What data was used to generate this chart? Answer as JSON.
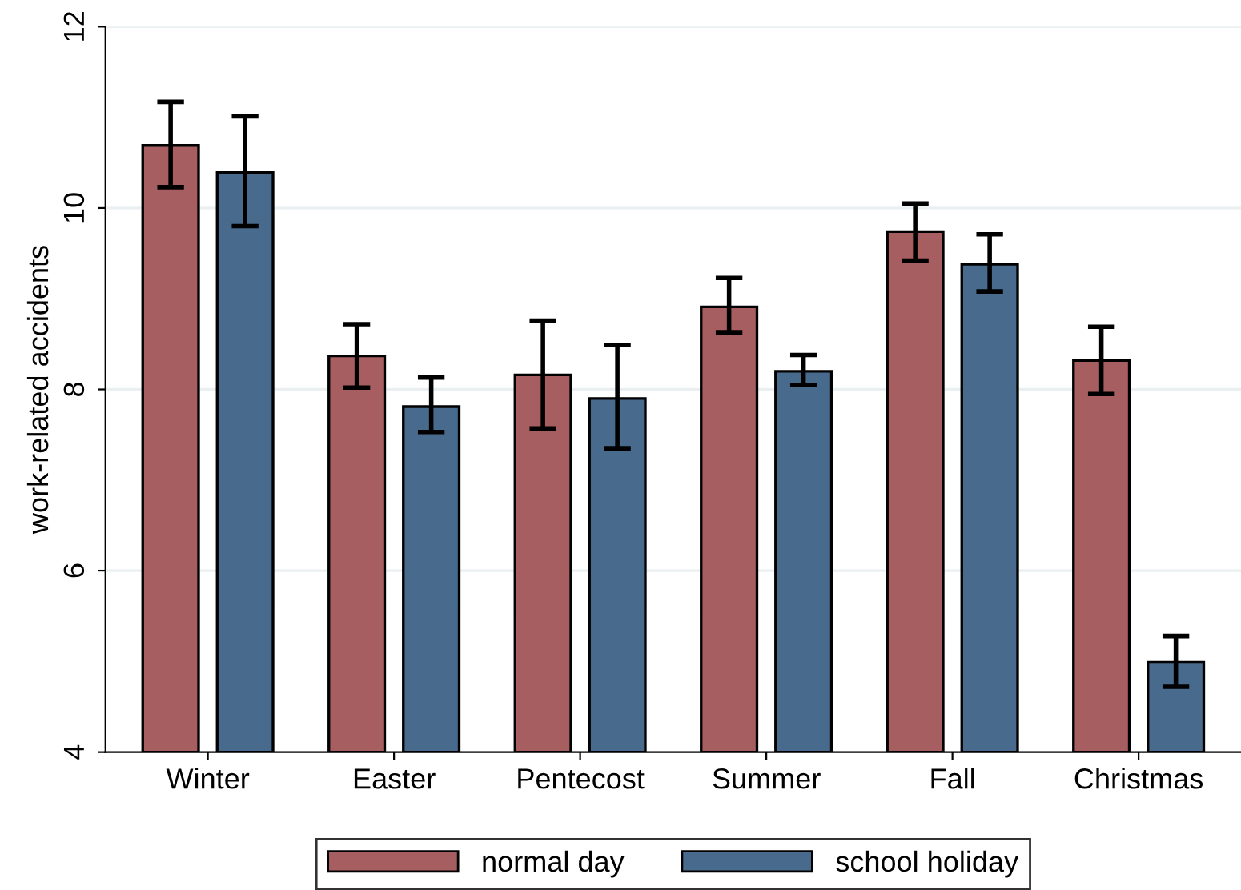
{
  "chart_data": {
    "type": "bar",
    "ylabel": "work-related accidents",
    "categories": [
      "Winter",
      "Easter",
      "Pentecost",
      "Summer",
      "Fall",
      "Christmas"
    ],
    "series": [
      {
        "name": "normal day",
        "color": "#a65e60",
        "values": [
          10.69,
          8.37,
          8.16,
          8.91,
          9.74,
          8.32
        ],
        "errors": [
          [
            10.23,
            11.17
          ],
          [
            8.02,
            8.72
          ],
          [
            7.57,
            8.76
          ],
          [
            8.63,
            9.23
          ],
          [
            9.42,
            10.05
          ],
          [
            7.95,
            8.69
          ]
        ]
      },
      {
        "name": "school holiday",
        "color": "#486a8c",
        "values": [
          10.39,
          7.81,
          7.9,
          8.2,
          9.38,
          4.99
        ],
        "errors": [
          [
            9.8,
            11.01
          ],
          [
            7.53,
            8.13
          ],
          [
            7.35,
            8.49
          ],
          [
            8.05,
            8.38
          ],
          [
            9.08,
            9.71
          ],
          [
            4.72,
            5.28
          ]
        ]
      }
    ],
    "ylim": [
      4,
      12
    ],
    "yticks": [
      4,
      6,
      8,
      10,
      12
    ],
    "grid": "y",
    "legend": "bottom"
  }
}
